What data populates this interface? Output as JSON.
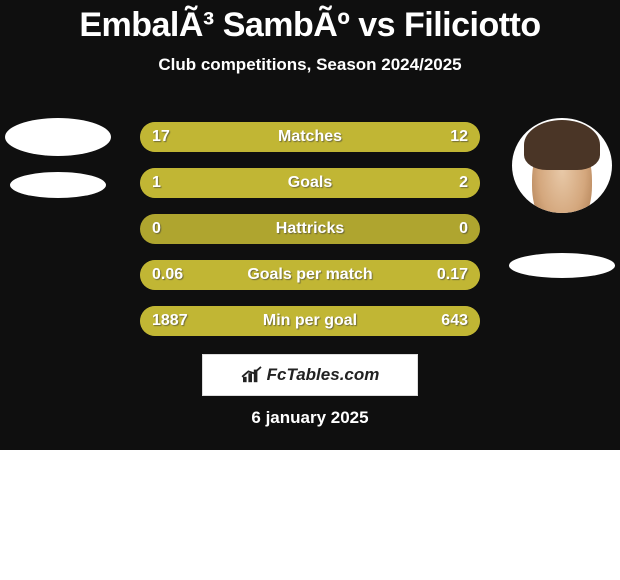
{
  "background_color": "#0f0f0f",
  "text_color": "#ffffff",
  "bar_track_color": "#afa52f",
  "bar_fill_left_color": "#afa52f",
  "bar_fill_right_color": "#afa52f",
  "title": {
    "left_name": "EmbalÃ³ SambÃº",
    "vs": " vs ",
    "right_name": "Filiciotto"
  },
  "subtitle": "Club competitions, Season 2024/2025",
  "bars": [
    {
      "label": "Matches",
      "left": "17",
      "right": "12",
      "left_num": 17,
      "right_num": 12
    },
    {
      "label": "Goals",
      "left": "1",
      "right": "2",
      "left_num": 1,
      "right_num": 2
    },
    {
      "label": "Hattricks",
      "left": "0",
      "right": "0",
      "left_num": 0,
      "right_num": 0
    },
    {
      "label": "Goals per match",
      "left": "0.06",
      "right": "0.17",
      "left_num": 0.06,
      "right_num": 0.17
    },
    {
      "label": "Min per goal",
      "left": "1887",
      "right": "643",
      "left_num": 1887,
      "right_num": 643
    }
  ],
  "player_left": {
    "has_photo": false
  },
  "player_right": {
    "has_photo": true
  },
  "logo_text": "FcTables.com",
  "date": "6 january 2025"
}
